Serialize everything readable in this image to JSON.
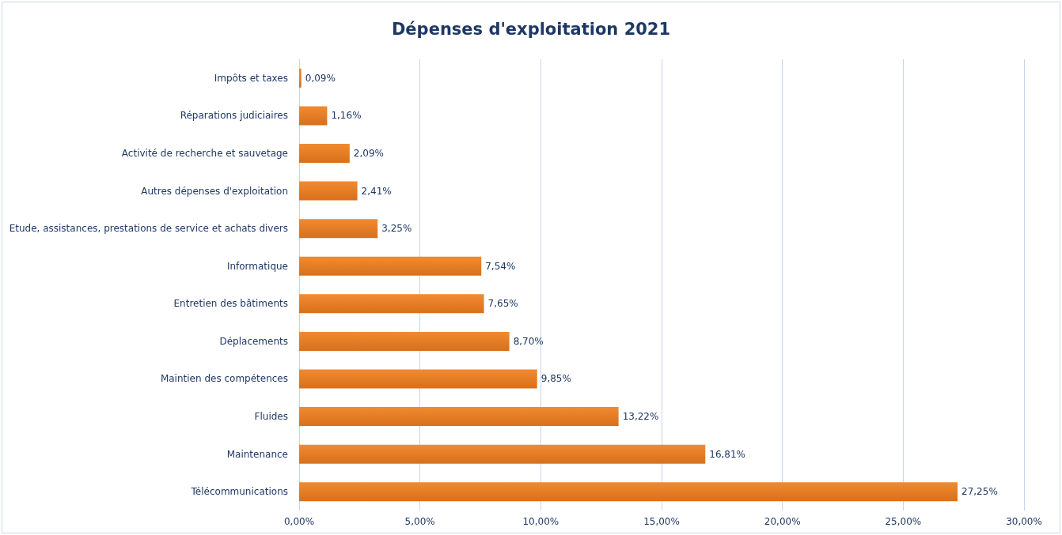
{
  "chart_data": {
    "type": "bar",
    "orientation": "horizontal",
    "title": "Dépenses d'exploitation 2021",
    "categories": [
      "Impôts et taxes",
      "Réparations judiciaires",
      "Activité de recherche et sauvetage",
      "Autres dépenses d'exploitation",
      "Etude, assistances, prestations de service et achats divers",
      "Informatique",
      "Entretien des bâtiments",
      "Déplacements",
      "Maintien des compétences",
      "Fluides",
      "Maintenance",
      "Télécommunications"
    ],
    "values": [
      0.09,
      1.16,
      2.09,
      2.41,
      3.25,
      7.54,
      7.65,
      8.7,
      9.85,
      13.22,
      16.81,
      27.25
    ],
    "value_labels": [
      "0,09%",
      "1,16%",
      "2,09%",
      "2,41%",
      "3,25%",
      "7,54%",
      "7,65%",
      "8,70%",
      "9,85%",
      "13,22%",
      "16,81%",
      "27,25%"
    ],
    "color": "#f28a30",
    "xlim": [
      0,
      30
    ],
    "xticks": [
      {
        "value": 0,
        "label": "0,00%"
      },
      {
        "value": 5,
        "label": "5,00%"
      },
      {
        "value": 10,
        "label": "10,00%"
      },
      {
        "value": 15,
        "label": "15,00%"
      },
      {
        "value": 20,
        "label": "20,00%"
      },
      {
        "value": 25,
        "label": "25,00%"
      },
      {
        "value": 30,
        "label": "30,00%"
      }
    ],
    "grid": "x"
  }
}
